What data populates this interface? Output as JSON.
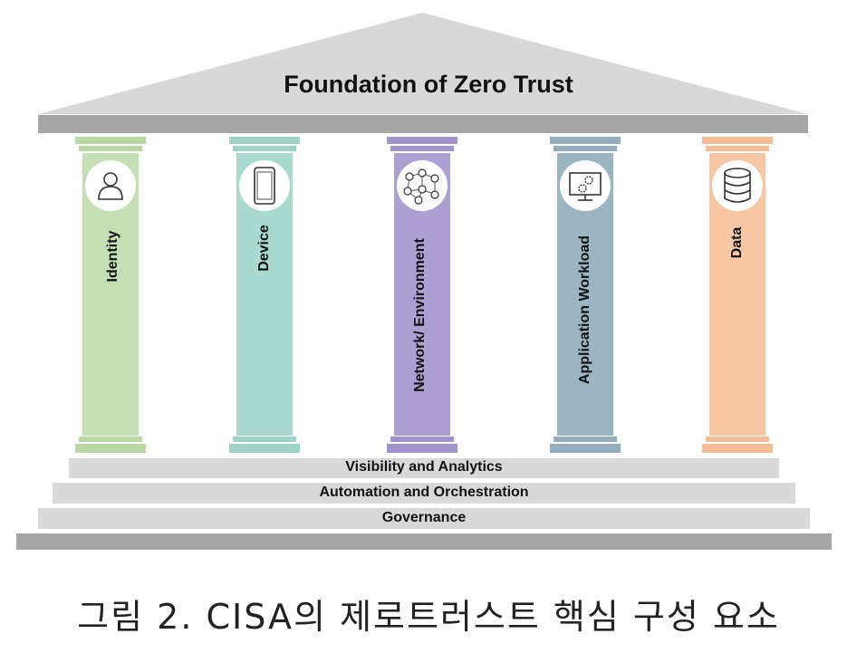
{
  "title": "Foundation of Zero Trust",
  "pillars": [
    {
      "label": "Identity",
      "icon": "person-icon",
      "color": "#c5dfb4",
      "cap": "#b9d7a5"
    },
    {
      "label": "Device",
      "icon": "mobile-phone-icon",
      "color": "#a9d9cf",
      "cap": "#9fd2c7"
    },
    {
      "label": "Network/ Environment",
      "icon": "network-nodes-icon",
      "color": "#ae9fd3",
      "cap": "#a393cd"
    },
    {
      "label": "Application Workload",
      "icon": "monitor-gears-icon",
      "color": "#9cb5c3",
      "cap": "#93adbc"
    },
    {
      "label": "Data",
      "icon": "database-icon",
      "color": "#f6c6a5",
      "cap": "#f3bb96"
    }
  ],
  "foundations": [
    {
      "label": "Visibility and Analytics"
    },
    {
      "label": "Automation and Orchestration"
    },
    {
      "label": "Governance"
    }
  ],
  "caption": "그림 2. CISA의 제로트러스트 핵심 구성 요소",
  "colors": {
    "roof": "#d8d8d8",
    "beam": "#a6a6a6",
    "step": "#d9d9d9",
    "base": "#a6a6a6",
    "icon_circle": "#ffffff"
  }
}
